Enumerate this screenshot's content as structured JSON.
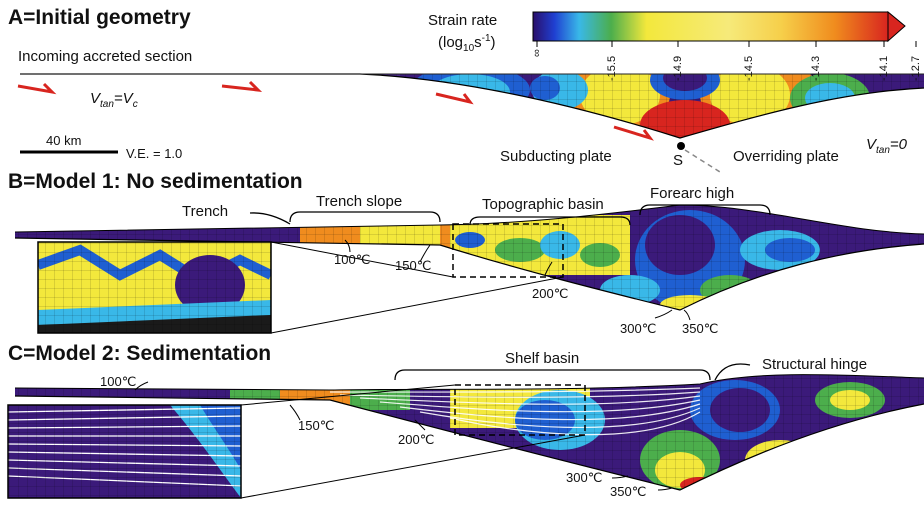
{
  "panelA": {
    "title": "A=Initial geometry",
    "incoming_label": "Incoming accreted section",
    "vtan_left": "V",
    "vtan_left_sub": "tan",
    "vtan_left_rest": "=V",
    "vtan_left_rest_sub": "c",
    "scale_bar": "40 km",
    "ve_label": "V.E. = 1.0",
    "subducting_label": "Subducting plate",
    "s_label": "S",
    "overriding_label": "Overriding plate",
    "vtan_right": "V",
    "vtan_right_sub": "tan",
    "vtan_right_rest": "=0"
  },
  "colorbar": {
    "title": "Strain rate",
    "unit": "(log",
    "unit_sub": "10",
    "unit_rest": "s",
    "unit_sup": "-1",
    "unit_close": ")",
    "ticks": [
      "∞",
      "-15.5",
      "-14.9",
      "-14.5",
      "-14.3",
      "-14.1",
      "-12.7"
    ]
  },
  "panelB": {
    "title": "B=Model 1: No sedimentation",
    "trench": "Trench",
    "trench_slope": "Trench slope",
    "topo_basin": "Topographic basin",
    "forearc_high": "Forearc high",
    "iso_100": "100℃",
    "iso_150": "150℃",
    "iso_200": "200℃",
    "iso_300": "300℃",
    "iso_350": "350℃"
  },
  "panelC": {
    "title": "C=Model 2: Sedimentation",
    "shelf_basin": "Shelf basin",
    "structural_hinge": "Structural hinge",
    "iso_100": "100℃",
    "iso_150": "150℃",
    "iso_200": "200℃",
    "iso_300": "300℃",
    "iso_350": "350℃"
  },
  "colors": {
    "purple": "#3b1a7a",
    "blue": "#1f5fd1",
    "cyan": "#39b8e8",
    "green": "#4cae4c",
    "yellow": "#f3e83c",
    "orange": "#f08c1e",
    "red": "#d8251f",
    "arrow": "#d8251f"
  }
}
